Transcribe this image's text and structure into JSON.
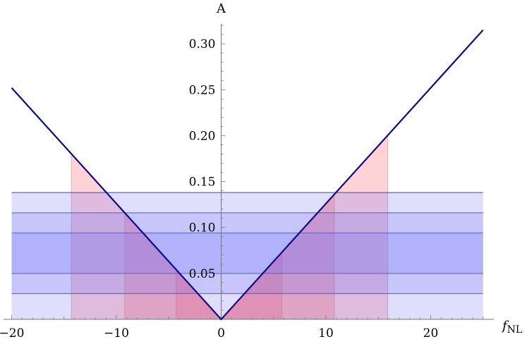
{
  "chart_data": {
    "type": "line",
    "title": "",
    "xlabel": "f",
    "xlabel_sub": "NL",
    "ylabel": "A",
    "xlim": [
      -20,
      25
    ],
    "ylim": [
      0,
      0.32
    ],
    "x_ticks": [
      -20,
      -10,
      0,
      10,
      20
    ],
    "x_tick_labels": [
      "−20",
      "−10",
      "0",
      "10",
      "20"
    ],
    "y_ticks": [
      0.05,
      0.1,
      0.15,
      0.2,
      0.25,
      0.3
    ],
    "y_tick_labels": [
      "0.05",
      "0.10",
      "0.15",
      "0.20",
      "0.25",
      "0.30"
    ],
    "grid": false,
    "series": [
      {
        "color": "#0a0a8c",
        "x": [
          -20,
          0,
          25
        ],
        "y": [
          0.252,
          0.0,
          0.315
        ]
      }
    ],
    "horizontal_bands": {
      "color": "#6f6ff5",
      "x_range": [
        -20,
        25
      ],
      "bands": [
        [
          0.05,
          0.094
        ],
        [
          0.028,
          0.116
        ],
        [
          0.0,
          0.138
        ]
      ]
    },
    "vertical_regions": {
      "color": "#ff6b78",
      "regions": [
        [
          -14.3,
          15.9
        ],
        [
          -9.2,
          10.8
        ],
        [
          -4.3,
          5.8
        ],
        [
          -0.1,
          0.1
        ]
      ]
    },
    "colors": {
      "line": "#0a0a8c",
      "band": "#6f6ff5",
      "region": "#ff6b78",
      "band_edge": "#5a5aa8",
      "region_edge": "#c08a9a"
    }
  }
}
